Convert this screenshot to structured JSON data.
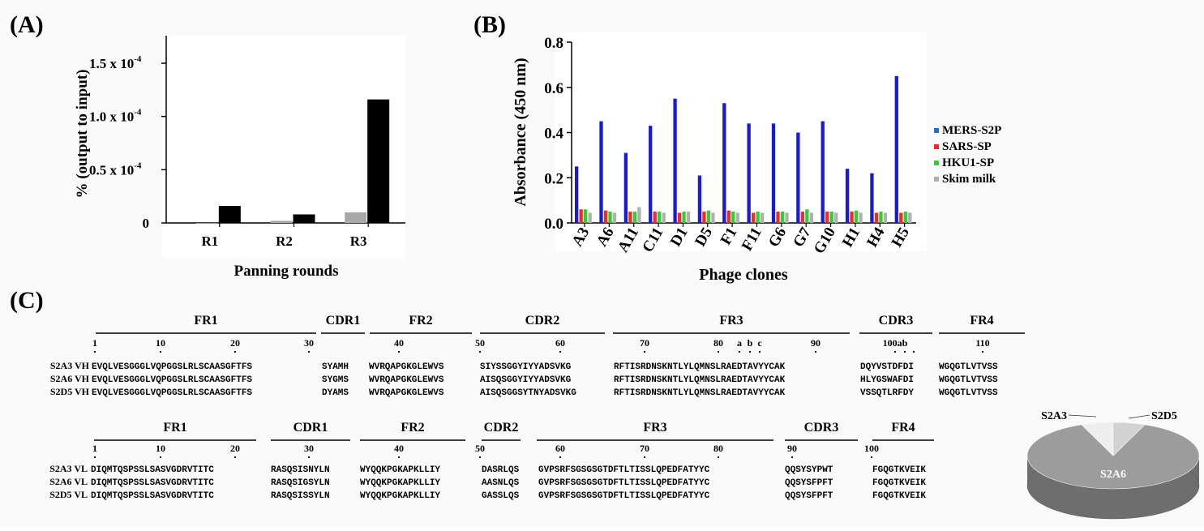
{
  "panels": {
    "a": "(A)",
    "b": "(B)",
    "c": "(C)"
  },
  "chart_data": [
    {
      "type": "bar",
      "panel": "A",
      "xlabel": "Panning rounds",
      "ylabel": "% (output to input)",
      "categories": [
        "R1",
        "R2",
        "R3"
      ],
      "ytick_labels": [
        "1.5 x 10",
        "1.0 x 10",
        "0.5 x 10",
        "0"
      ],
      "ytick_exponent": "-4",
      "yticks": [
        1.5,
        1.0,
        0.5,
        0
      ],
      "ylim": [
        0,
        1.5
      ],
      "unit_multiplier": "1e-4",
      "series": [
        {
          "values": [
            0.0,
            0.02,
            0.1
          ],
          "color": "#a8a8a8"
        },
        {
          "values": [
            0.16,
            0.08,
            1.16
          ],
          "color": "#000000"
        }
      ]
    },
    {
      "type": "bar",
      "panel": "B",
      "xlabel": "Phage clones",
      "ylabel": "Absorbance (450 nm)",
      "categories": [
        "A3",
        "A6",
        "A11",
        "C11",
        "D1",
        "D5",
        "F1",
        "F11",
        "G6",
        "G7",
        "G10",
        "H1",
        "H4",
        "H5"
      ],
      "ytick_labels": [
        "0.8",
        "0.6",
        "0.4",
        "0.2",
        "0.0"
      ],
      "yticks": [
        0.8,
        0.6,
        0.4,
        0.2,
        0.0
      ],
      "ylim": [
        0,
        0.8
      ],
      "legend_position": "right",
      "series": [
        {
          "name": "MERS-S2P",
          "color": "#1a1ad6",
          "legend_color": "#1f6fd0",
          "values": [
            0.25,
            0.45,
            0.31,
            0.43,
            0.55,
            0.21,
            0.53,
            0.44,
            0.44,
            0.4,
            0.45,
            0.24,
            0.22,
            0.65
          ]
        },
        {
          "name": "SARS-SP",
          "color": "#ee2a2a",
          "values": [
            0.06,
            0.055,
            0.05,
            0.05,
            0.045,
            0.05,
            0.055,
            0.045,
            0.05,
            0.05,
            0.05,
            0.05,
            0.045,
            0.045
          ]
        },
        {
          "name": "HKU1-SP",
          "color": "#33cc33",
          "values": [
            0.06,
            0.05,
            0.05,
            0.05,
            0.05,
            0.055,
            0.05,
            0.05,
            0.05,
            0.06,
            0.05,
            0.055,
            0.05,
            0.05
          ]
        },
        {
          "name": "Skim milk",
          "color": "#b0b0b0",
          "values": [
            0.045,
            0.045,
            0.07,
            0.045,
            0.05,
            0.045,
            0.045,
            0.045,
            0.045,
            0.045,
            0.045,
            0.045,
            0.045,
            0.045
          ]
        }
      ]
    },
    {
      "type": "pie",
      "panel": "C",
      "labels": [
        "S2A6",
        "S2A3",
        "S2D5"
      ],
      "values": [
        88,
        6,
        6
      ],
      "colors": [
        "#9c9c9c",
        "#d2d2d2",
        "#eeeeee"
      ]
    }
  ],
  "alignment_vh": {
    "regions": [
      "FR1",
      "CDR1",
      "FR2",
      "CDR2",
      "FR3",
      "CDR3",
      "FR4"
    ],
    "numbers": [
      "1",
      "10",
      "20",
      "30",
      "40",
      "50",
      "60",
      "70",
      "80",
      "a",
      "b",
      "c",
      "90",
      "100ab",
      "110"
    ],
    "rows": [
      {
        "name": "S2A3 VH",
        "seq": [
          "EVQLVESGGGLVQPGGSLRLSCAASGFTFS",
          "SYAMH",
          "WVRQAPGKGLEWVS",
          "SIYSSGGYIYYADSVKG",
          "RFTISRDNSKNTLYLQMNSLRAEDTAVYYCAK",
          "DQYVSTDFDI",
          "WGQGTLVTVSS"
        ]
      },
      {
        "name": "S2A6 VH",
        "seq": [
          "EVQLVESGGGLVQPGGSLRLSCAASGFTFS",
          "SYGMS",
          "WVRQAPGKGLEWVS",
          "AISQSGGYIYYADSVKG",
          "RFTISRDNSKNTLYLQMNSLRAEDTAVYYCAK",
          "HLYGSWAFDI",
          "WGQGTLVTVSS"
        ]
      },
      {
        "name": "S2D5 VH",
        "seq": [
          "EVQLVESGGGLVQPGGSLRLSCAASGFTFS",
          "DYAMS",
          "WVRQAPGKGLEWVS",
          "AISQSGGSYTNYADSVKG",
          "RFTISRDNSKNTLYLQMNSLRAEDTAVYYCAK",
          "VSSQTLRFDY",
          "WGQGTLVTVSS"
        ]
      }
    ]
  },
  "alignment_vl": {
    "regions": [
      "FR1",
      "CDR1",
      "FR2",
      "CDR2",
      "FR3",
      "CDR3",
      "FR4"
    ],
    "numbers": [
      "1",
      "10",
      "20",
      "30",
      "40",
      "50",
      "60",
      "70",
      "80",
      "90",
      "100"
    ],
    "rows": [
      {
        "name": "S2A3 VL",
        "seq": [
          "DIQMTQSPSSLSASVGDRVTITC",
          "RASQSISNYLN",
          "WYQQKPGKAPKLLIY",
          "DASRLQS",
          "GVPSRFSGSGSGTDFTLTISSLQPEDFATYYC",
          "QQSYSYPWT",
          "FGQGTKVEIK"
        ]
      },
      {
        "name": "S2A6 VL",
        "seq": [
          "DIQMTQSPSSLSASVGDRVTITC",
          "RASQSIGSYLN",
          "WYQQKPGKAPKLLIY",
          "AASNLQS",
          "GVPSRFSGSGSGTDFTLTISSLQPEDFATYYC",
          "QQSYSFPFT",
          "FGQGTKVEIK"
        ]
      },
      {
        "name": "S2D5 VL",
        "seq": [
          "DIQMTQSPSSLSASVGDRVTITC",
          "RASQSISSYLN",
          "WYQQKPGKAPKLLIY",
          "GASSLQS",
          "GVPSRFSGSGSGTDFTLTISSLQPEDFATYYC",
          "QQSYSFPFT",
          "FGQGTKVEIK"
        ]
      }
    ]
  }
}
